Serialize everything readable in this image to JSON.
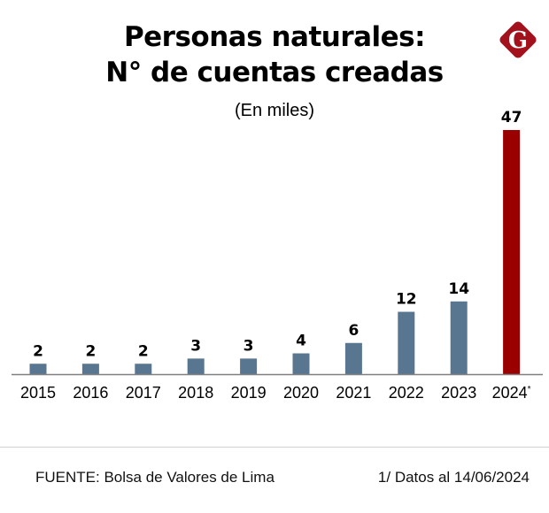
{
  "chart_data": {
    "type": "bar",
    "title_line1": "Personas naturales:",
    "title_line2": "N° de cuentas creadas",
    "subtitle": "(En miles)",
    "categories": [
      "2015",
      "2016",
      "2017",
      "2018",
      "2019",
      "2020",
      "2021",
      "2022",
      "2023",
      "2024*"
    ],
    "values": [
      2,
      2,
      2,
      3,
      3,
      4,
      6,
      12,
      14,
      47
    ],
    "xlabel": "",
    "ylabel": "",
    "ylim": [
      0,
      47
    ],
    "grid": false,
    "colors": {
      "default": "#587690",
      "highlight": "#9b0000"
    },
    "highlight_index": 9
  },
  "footer": {
    "source": "FUENTE:  Bolsa de Valores de Lima",
    "note": "1/ Datos al 14/06/2024"
  },
  "logo": {
    "letter": "G",
    "color": "#a3111c"
  }
}
